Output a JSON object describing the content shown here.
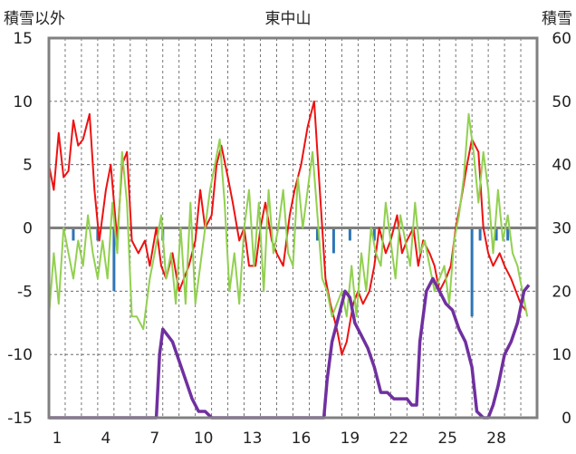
{
  "chart_data": {
    "type": "line",
    "title": "東中山",
    "y_left_label": "積雪以外",
    "y_right_label": "積雪",
    "y_left_range": [
      -15,
      15
    ],
    "y_left_ticks": [
      -15,
      -10,
      -5,
      0,
      5,
      10,
      15
    ],
    "y_right_range": [
      0,
      60
    ],
    "y_right_ticks": [
      0,
      10,
      20,
      30,
      40,
      50,
      60
    ],
    "x_range": [
      0,
      30
    ],
    "x_ticks": [
      1,
      4,
      7,
      10,
      13,
      16,
      19,
      22,
      25,
      28
    ],
    "grid": true,
    "colors": {
      "temperature": "#ee1111",
      "green_series": "#92d050",
      "bars": "#2e75b6",
      "snow_depth": "#7030a0",
      "zero_line": "#7f7f7f",
      "frame": "#808080",
      "grid": "#555555"
    },
    "series": [
      {
        "axis": "left",
        "color": "#ee1111",
        "points": [
          [
            0,
            5
          ],
          [
            0.3,
            3
          ],
          [
            0.6,
            7.5
          ],
          [
            0.9,
            4
          ],
          [
            1.2,
            4.5
          ],
          [
            1.5,
            8.5
          ],
          [
            1.8,
            6.5
          ],
          [
            2.1,
            7
          ],
          [
            2.5,
            9
          ],
          [
            2.8,
            3
          ],
          [
            3.1,
            -1
          ],
          [
            3.5,
            3
          ],
          [
            3.8,
            5
          ],
          [
            4.2,
            -1
          ],
          [
            4.5,
            5
          ],
          [
            4.8,
            6
          ],
          [
            5.1,
            -1
          ],
          [
            5.5,
            -2
          ],
          [
            5.9,
            -1
          ],
          [
            6.2,
            -3
          ],
          [
            6.6,
            0
          ],
          [
            6.9,
            -3
          ],
          [
            7.2,
            -4
          ],
          [
            7.6,
            -2
          ],
          [
            8.0,
            -5
          ],
          [
            8.3,
            -4
          ],
          [
            8.6,
            -3
          ],
          [
            9.0,
            -1
          ],
          [
            9.3,
            3
          ],
          [
            9.6,
            0
          ],
          [
            10.0,
            1
          ],
          [
            10.3,
            5
          ],
          [
            10.6,
            6.5
          ],
          [
            11.0,
            4
          ],
          [
            11.3,
            2
          ],
          [
            11.7,
            -1
          ],
          [
            12.0,
            0
          ],
          [
            12.3,
            -3
          ],
          [
            12.7,
            -3
          ],
          [
            13.0,
            0
          ],
          [
            13.3,
            2
          ],
          [
            13.7,
            -1
          ],
          [
            14.0,
            -2
          ],
          [
            14.4,
            -3
          ],
          [
            14.8,
            1
          ],
          [
            15.1,
            3
          ],
          [
            15.5,
            5
          ],
          [
            15.9,
            8
          ],
          [
            16.3,
            10
          ],
          [
            16.6,
            4
          ],
          [
            17.0,
            -4
          ],
          [
            17.3,
            -6
          ],
          [
            17.7,
            -8
          ],
          [
            18.0,
            -10
          ],
          [
            18.3,
            -9
          ],
          [
            18.7,
            -6
          ],
          [
            19.0,
            -5
          ],
          [
            19.3,
            -6
          ],
          [
            19.7,
            -5
          ],
          [
            20.0,
            -3
          ],
          [
            20.3,
            0
          ],
          [
            20.7,
            -2
          ],
          [
            21.0,
            -1
          ],
          [
            21.4,
            1
          ],
          [
            21.7,
            -2
          ],
          [
            22.0,
            -1
          ],
          [
            22.4,
            0
          ],
          [
            22.7,
            -3
          ],
          [
            23.0,
            -1
          ],
          [
            23.4,
            -2
          ],
          [
            23.7,
            -3
          ],
          [
            24.0,
            -5
          ],
          [
            24.4,
            -4
          ],
          [
            24.7,
            -3
          ],
          [
            25.0,
            0
          ],
          [
            25.3,
            2
          ],
          [
            25.7,
            5
          ],
          [
            26.0,
            7
          ],
          [
            26.4,
            6
          ],
          [
            26.7,
            0
          ],
          [
            27.0,
            -2
          ],
          [
            27.3,
            -3
          ],
          [
            27.7,
            -2
          ],
          [
            28.0,
            -3
          ],
          [
            28.4,
            -4
          ],
          [
            28.7,
            -5
          ],
          [
            29.0,
            -6
          ],
          [
            29.3,
            -6.5
          ]
        ]
      },
      {
        "axis": "left",
        "color": "#92d050",
        "points": [
          [
            0,
            -7
          ],
          [
            0.3,
            -2
          ],
          [
            0.6,
            -6
          ],
          [
            0.9,
            0
          ],
          [
            1.2,
            -2
          ],
          [
            1.5,
            -4
          ],
          [
            1.8,
            -1
          ],
          [
            2.1,
            -3
          ],
          [
            2.4,
            1
          ],
          [
            2.7,
            -2
          ],
          [
            3.0,
            -4
          ],
          [
            3.3,
            -1
          ],
          [
            3.6,
            -4
          ],
          [
            3.9,
            2
          ],
          [
            4.2,
            -2
          ],
          [
            4.5,
            6
          ],
          [
            4.8,
            2
          ],
          [
            5.1,
            -7
          ],
          [
            5.4,
            -7
          ],
          [
            5.8,
            -8
          ],
          [
            6.2,
            -4
          ],
          [
            6.5,
            -2
          ],
          [
            6.9,
            1
          ],
          [
            7.2,
            -4
          ],
          [
            7.5,
            -2
          ],
          [
            7.8,
            -6
          ],
          [
            8.1,
            0
          ],
          [
            8.4,
            -6
          ],
          [
            8.7,
            2
          ],
          [
            9.0,
            -6
          ],
          [
            9.3,
            -3
          ],
          [
            9.6,
            0
          ],
          [
            9.9,
            3
          ],
          [
            10.2,
            5
          ],
          [
            10.5,
            7
          ],
          [
            10.8,
            2
          ],
          [
            11.1,
            -5
          ],
          [
            11.4,
            -2
          ],
          [
            11.7,
            -6
          ],
          [
            12.0,
            0
          ],
          [
            12.3,
            3
          ],
          [
            12.6,
            -3
          ],
          [
            12.9,
            2
          ],
          [
            13.2,
            -5
          ],
          [
            13.5,
            3
          ],
          [
            13.8,
            -2
          ],
          [
            14.1,
            0
          ],
          [
            14.4,
            3
          ],
          [
            14.7,
            -2
          ],
          [
            15.0,
            -3
          ],
          [
            15.3,
            4
          ],
          [
            15.6,
            0
          ],
          [
            15.9,
            3
          ],
          [
            16.2,
            6
          ],
          [
            16.5,
            1
          ],
          [
            16.8,
            -4
          ],
          [
            17.1,
            -5
          ],
          [
            17.4,
            -7
          ],
          [
            17.7,
            -6
          ],
          [
            18.0,
            -5
          ],
          [
            18.3,
            -7
          ],
          [
            18.6,
            -3
          ],
          [
            18.9,
            -7
          ],
          [
            19.2,
            -2
          ],
          [
            19.5,
            -5
          ],
          [
            19.8,
            0
          ],
          [
            20.1,
            -2
          ],
          [
            20.4,
            -3
          ],
          [
            20.7,
            2
          ],
          [
            21.0,
            -1
          ],
          [
            21.3,
            -4
          ],
          [
            21.6,
            1
          ],
          [
            21.9,
            -1
          ],
          [
            22.2,
            -3
          ],
          [
            22.5,
            2
          ],
          [
            22.8,
            -2
          ],
          [
            23.1,
            -1
          ],
          [
            23.4,
            -3
          ],
          [
            23.7,
            -5
          ],
          [
            24.0,
            -4
          ],
          [
            24.3,
            -3
          ],
          [
            24.6,
            -6
          ],
          [
            24.9,
            -1
          ],
          [
            25.2,
            1
          ],
          [
            25.5,
            4
          ],
          [
            25.8,
            9
          ],
          [
            26.1,
            6
          ],
          [
            26.4,
            2
          ],
          [
            26.7,
            6
          ],
          [
            27.0,
            3
          ],
          [
            27.3,
            -2
          ],
          [
            27.6,
            3
          ],
          [
            27.9,
            -1
          ],
          [
            28.2,
            1
          ],
          [
            28.5,
            -2
          ],
          [
            28.8,
            -3
          ],
          [
            29.1,
            -5
          ],
          [
            29.4,
            -7
          ]
        ]
      },
      {
        "axis": "left",
        "type": "bar",
        "color": "#2e75b6",
        "points": [
          [
            1.5,
            -1
          ],
          [
            3.0,
            -1
          ],
          [
            4.0,
            -5
          ],
          [
            7.0,
            -1
          ],
          [
            16.5,
            -1
          ],
          [
            17.5,
            -2
          ],
          [
            18.5,
            -1
          ],
          [
            20.0,
            -1
          ],
          [
            26.0,
            -7
          ],
          [
            26.5,
            -1
          ],
          [
            27.5,
            -1
          ],
          [
            28.2,
            -1
          ]
        ]
      },
      {
        "axis": "right",
        "color": "#7030a0",
        "points": [
          [
            0,
            0
          ],
          [
            1,
            0
          ],
          [
            2,
            0
          ],
          [
            3,
            0
          ],
          [
            4,
            0
          ],
          [
            5,
            0
          ],
          [
            6,
            0
          ],
          [
            6.6,
            0
          ],
          [
            6.8,
            10
          ],
          [
            7.0,
            14
          ],
          [
            7.3,
            13
          ],
          [
            7.6,
            12
          ],
          [
            8.0,
            9
          ],
          [
            8.4,
            6
          ],
          [
            8.8,
            3
          ],
          [
            9.2,
            1
          ],
          [
            9.6,
            1
          ],
          [
            10.0,
            0
          ],
          [
            11,
            0
          ],
          [
            12,
            0
          ],
          [
            13,
            0
          ],
          [
            14,
            0
          ],
          [
            15,
            0
          ],
          [
            16,
            0
          ],
          [
            16.9,
            0
          ],
          [
            17.1,
            6
          ],
          [
            17.4,
            12
          ],
          [
            17.8,
            16
          ],
          [
            18.2,
            20
          ],
          [
            18.5,
            19
          ],
          [
            18.8,
            15
          ],
          [
            19.2,
            13
          ],
          [
            19.6,
            11
          ],
          [
            20.0,
            8
          ],
          [
            20.4,
            4
          ],
          [
            20.8,
            4
          ],
          [
            21.2,
            3
          ],
          [
            21.6,
            3
          ],
          [
            22.0,
            3
          ],
          [
            22.3,
            2
          ],
          [
            22.6,
            2
          ],
          [
            22.8,
            12
          ],
          [
            23.2,
            20
          ],
          [
            23.6,
            22
          ],
          [
            24.0,
            20
          ],
          [
            24.4,
            18
          ],
          [
            24.8,
            17
          ],
          [
            25.2,
            14
          ],
          [
            25.6,
            12
          ],
          [
            26.0,
            8
          ],
          [
            26.3,
            1
          ],
          [
            26.7,
            0
          ],
          [
            27.0,
            0
          ],
          [
            27.3,
            2
          ],
          [
            27.6,
            5
          ],
          [
            28.0,
            10
          ],
          [
            28.4,
            12
          ],
          [
            28.8,
            15
          ],
          [
            29.2,
            20
          ],
          [
            29.5,
            21
          ]
        ]
      }
    ]
  }
}
